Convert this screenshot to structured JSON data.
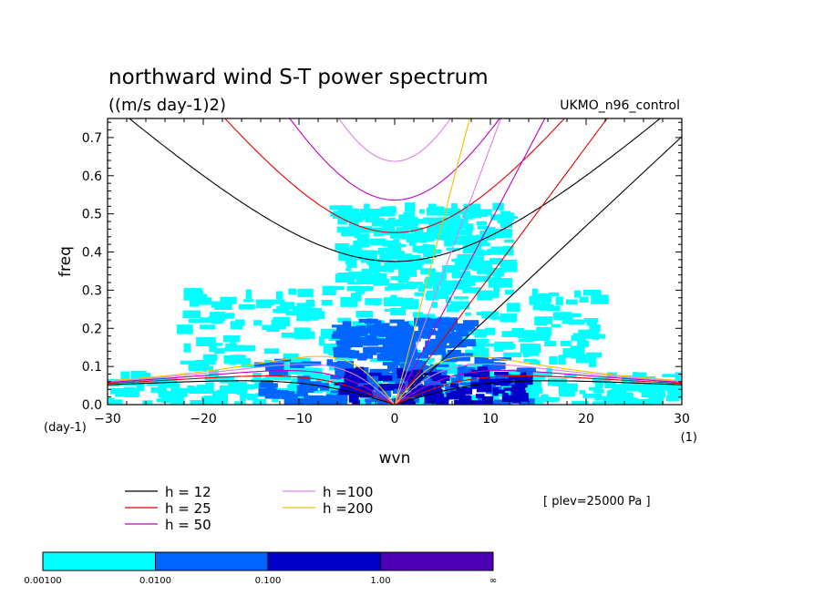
{
  "chart_data": {
    "type": "heatmap",
    "title": "northward wind S-T power spectrum",
    "subtitle": "((m/s day-1)2)",
    "run_label": "UKMO_n96_control",
    "level_label": "[ plev=25000 Pa ]",
    "xlabel": "wvn",
    "ylabel": "freq",
    "x_unit": "(1)",
    "y_unit": "(day-1)",
    "xlim": [
      -30,
      30
    ],
    "ylim": [
      0,
      0.75
    ],
    "x_ticks": [
      -30,
      -20,
      -10,
      0,
      10,
      20,
      30
    ],
    "y_ticks": [
      0.0,
      0.1,
      0.2,
      0.3,
      0.4,
      0.5,
      0.6,
      0.7
    ],
    "y_tick_labels": [
      "0.0",
      "0.1",
      "0.2",
      "0.3",
      "0.4",
      "0.5",
      "0.6",
      "0.7"
    ],
    "dispersion_curves": [
      {
        "label": "h = 12",
        "h": 12,
        "color": "#000000"
      },
      {
        "label": "h = 25",
        "h": 25,
        "color": "#e00000"
      },
      {
        "label": "h = 50",
        "h": 50,
        "color": "#c000c0"
      },
      {
        "label": "h =100",
        "h": 100,
        "color": "#e080e0"
      },
      {
        "label": "h =200",
        "h": 200,
        "color": "#f0c000"
      }
    ],
    "colorbar": {
      "labels": [
        "0.00100",
        "0.0100",
        "0.100",
        "1.00",
        "∞"
      ],
      "colors": [
        "#00ffff",
        "#0064ff",
        "#0000c8",
        "#4b00b4"
      ]
    },
    "field_regions": [
      {
        "level": 1,
        "x": [
          -30,
          30
        ],
        "y": [
          0.0,
          0.08
        ]
      },
      {
        "level": 1,
        "x": [
          -22,
          22
        ],
        "y": [
          0.08,
          0.3
        ]
      },
      {
        "level": 1,
        "x": [
          -6,
          12
        ],
        "y": [
          0.3,
          0.52
        ]
      },
      {
        "level": 2,
        "x": [
          -14,
          14
        ],
        "y": [
          0.0,
          0.12
        ]
      },
      {
        "level": 2,
        "x": [
          -6,
          8
        ],
        "y": [
          0.12,
          0.22
        ]
      },
      {
        "level": 3,
        "x": [
          -6,
          14
        ],
        "y": [
          0.0,
          0.09
        ]
      }
    ]
  }
}
